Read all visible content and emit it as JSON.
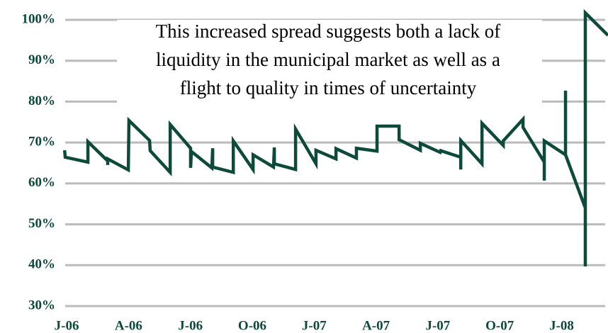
{
  "chart_data": {
    "type": "line",
    "annotation": [
      "This increased spread suggests both a lack of",
      "liquidity in the municipal market as well as a",
      "flight to quality in times of uncertainty"
    ],
    "x": [
      -0.1,
      -0.07,
      1.03,
      1.03,
      1.99,
      1.99,
      1.99,
      2.99,
      3.02,
      4.02,
      4.05,
      5.02,
      5.02,
      6.01,
      6.01,
      6.05,
      7.04,
      7.08,
      7.08,
      8.08,
      8.08,
      9.04,
      9.04,
      10.03,
      10.07,
      10.07,
      11.1,
      11.1,
      12.09,
      12.09,
      13.06,
      13.06,
      14.05,
      14.05,
      15.05,
      15.05,
      16.12,
      16.12,
      17.15,
      17.15,
      18.11,
      18.14,
      19.11,
      19.11,
      19.11,
      20.14,
      20.14,
      21.17,
      21.17,
      22.13,
      22.13,
      23.16,
      23.16,
      23.16,
      24.19,
      24.19,
      24.19,
      25.15,
      25.15,
      25.15,
      26.25
    ],
    "series": [
      {
        "color": "#0d4a3a",
        "values": [
          68.1,
          66.4,
          65.2,
          70.2,
          65.5,
          64.5,
          66,
          63.3,
          75.4,
          70.5,
          68,
          62.7,
          74.4,
          68.6,
          63.8,
          67.8,
          63.8,
          68.6,
          64,
          62.7,
          70.4,
          63.4,
          67,
          64,
          68.8,
          64.8,
          63.4,
          73.3,
          64.8,
          68.1,
          66,
          68.5,
          66.2,
          68.6,
          67.9,
          74,
          74,
          70.7,
          68.1,
          69.8,
          67.6,
          68,
          66.4,
          63.4,
          70.5,
          64.8,
          74.7,
          69.3,
          70.4,
          75.7,
          73.7,
          65.2,
          60.7,
          70.4,
          67,
          82.7,
          67,
          54,
          39.7,
          101.7,
          96.2
        ]
      }
    ],
    "xlim": [
      -0.14,
      26.25
    ],
    "xticks": [
      {
        "value": 0,
        "label": "J-06"
      },
      {
        "value": 3,
        "label": "A-06"
      },
      {
        "value": 6,
        "label": "J-06"
      },
      {
        "value": 9,
        "label": "O-06"
      },
      {
        "value": 12,
        "label": "J-07"
      },
      {
        "value": 15,
        "label": "A-07"
      },
      {
        "value": 18,
        "label": "J-07"
      },
      {
        "value": 21,
        "label": "O-07"
      },
      {
        "value": 24,
        "label": "J-08"
      }
    ],
    "ylim": [
      30,
      100
    ],
    "yticks": [
      {
        "value": 30,
        "label": "30%"
      },
      {
        "value": 40,
        "label": "40%"
      },
      {
        "value": 50,
        "label": "50%"
      },
      {
        "value": 60,
        "label": "60%"
      },
      {
        "value": 70,
        "label": "70%"
      },
      {
        "value": 80,
        "label": "80%"
      },
      {
        "value": 90,
        "label": "90%"
      },
      {
        "value": 100,
        "label": "100%"
      }
    ],
    "grid": true
  }
}
